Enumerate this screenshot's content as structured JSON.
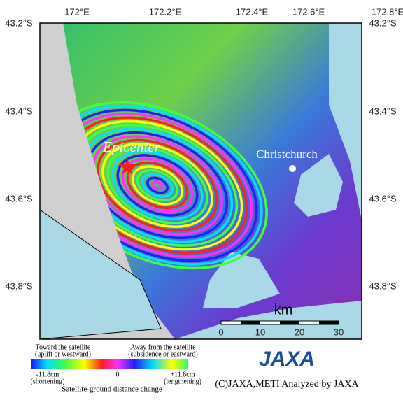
{
  "map": {
    "lon_labels": [
      "172°E",
      "172.2°E",
      "172.4°E",
      "172.6°E",
      "172.8°E"
    ],
    "lat_labels": [
      "43.2°S",
      "43.4°S",
      "43.6°S",
      "43.8°S"
    ],
    "epicenter_label": "Epicenter",
    "city_label": "Christchurch",
    "scale_unit": "km",
    "scale_ticks": [
      "0",
      "10",
      "20",
      "30"
    ]
  },
  "legend": {
    "left_title": "Toward the satellite",
    "left_sub": "(uplift or westward)",
    "right_title": "Away from the satellite",
    "right_sub": "(subsidence or eastward)",
    "min_label": "-11.8cm",
    "min_sub": "(shortening)",
    "zero_label": "0",
    "max_label": "+11.8cm",
    "max_sub": "(lengthening)",
    "caption": "Satellite-ground distance change"
  },
  "credit": {
    "logo": "JAXA",
    "text": "(C)JAXA,METI Analyzed by JAXA"
  }
}
